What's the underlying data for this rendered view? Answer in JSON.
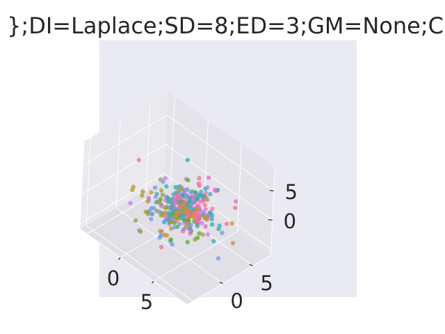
{
  "chart_data": {
    "type": "scatter",
    "projection": "3d",
    "title": "};DI=Laplace;SD=8;ED=3;GM=None;C",
    "xlabel": "",
    "ylabel": "",
    "zlabel": "",
    "grid": true,
    "legend": "none",
    "theme": {
      "axes_background": "#eaeaf2",
      "pane_colors": [
        "#e9e9ee",
        "#e4e4ea",
        "#e0e0e6"
      ],
      "grid_color": "#ffffff",
      "text_color": "#262626"
    },
    "xlim": [
      -6,
      10
    ],
    "ylim": [
      -6,
      8
    ],
    "zlim": [
      -6,
      9
    ],
    "x_ticks": [
      {
        "value": 0,
        "label": "0"
      },
      {
        "value": 5,
        "label": "5"
      }
    ],
    "y_ticks": [
      {
        "value": 0,
        "label": "0"
      },
      {
        "value": 5,
        "label": "5"
      }
    ],
    "z_ticks": [
      {
        "value": 0,
        "label": "0"
      },
      {
        "value": 5,
        "label": "5"
      }
    ],
    "cluster_colors": [
      "#f77189",
      "#d58c32",
      "#a59c31",
      "#50b131",
      "#36ada4",
      "#38a9c5",
      "#6e9bf4",
      "#cc7af4",
      "#f565cc"
    ],
    "points_per_cluster": 45,
    "spread": 1.2,
    "outliers": [
      {
        "x": 2.0,
        "y": 2.4,
        "z": 7.2,
        "color": "#36ada4"
      },
      {
        "x": 6.4,
        "y": -3.2,
        "z": 6.2,
        "color": "#f565cc"
      },
      {
        "x": 3.2,
        "y": -2.4,
        "z": 4.8,
        "color": "#cc7af4"
      },
      {
        "x": 8.8,
        "y": 2.5,
        "z": 1.8,
        "color": "#d58c32"
      },
      {
        "x": 5.4,
        "y": 4.4,
        "z": -2.5,
        "color": "#38a9c5"
      },
      {
        "x": -0.9,
        "y": 4.1,
        "z": -2.5,
        "color": "#f565cc"
      },
      {
        "x": -1.7,
        "y": 0.3,
        "z": -1.6,
        "color": "#d58c32"
      },
      {
        "x": -2.5,
        "y": 0.2,
        "z": -1.2,
        "color": "#a59c31"
      },
      {
        "x": 2.4,
        "y": 3.5,
        "z": 0.6,
        "color": "#36ada4"
      },
      {
        "x": 2.8,
        "y": 4.0,
        "z": -0.2,
        "color": "#f77189"
      },
      {
        "x": 3.3,
        "y": -0.2,
        "z": 2.9,
        "color": "#36ada4"
      }
    ]
  }
}
